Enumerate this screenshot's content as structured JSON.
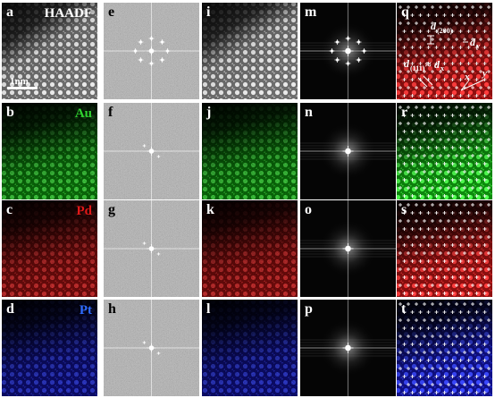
{
  "figure": {
    "panels": [
      {
        "id": "a",
        "kind": "stem",
        "tint": "gray",
        "label": "a",
        "tag": "HAADF",
        "tagColor": "#ffffff",
        "scalebar": "1nm"
      },
      {
        "id": "b",
        "kind": "map",
        "tint": "green",
        "label": "b",
        "tag": "Au",
        "tagColor": "#2fd12f"
      },
      {
        "id": "c",
        "kind": "map",
        "tint": "red",
        "label": "c",
        "tag": "Pd",
        "tagColor": "#e01818"
      },
      {
        "id": "d",
        "kind": "map",
        "tint": "blue",
        "label": "d",
        "tag": "Pt",
        "tagColor": "#2f6cff"
      },
      {
        "id": "e",
        "kind": "fft",
        "tint": "gray",
        "label": "e"
      },
      {
        "id": "f",
        "kind": "fft",
        "tint": "gray",
        "label": "f"
      },
      {
        "id": "g",
        "kind": "fft",
        "tint": "gray",
        "label": "g"
      },
      {
        "id": "h",
        "kind": "fft",
        "tint": "gray",
        "label": "h"
      },
      {
        "id": "i",
        "kind": "stem",
        "tint": "gray",
        "label": "i"
      },
      {
        "id": "j",
        "kind": "map",
        "tint": "green",
        "label": "j"
      },
      {
        "id": "k",
        "kind": "map",
        "tint": "red",
        "label": "k"
      },
      {
        "id": "l",
        "kind": "map",
        "tint": "blue",
        "label": "l"
      },
      {
        "id": "m",
        "kind": "fftdark",
        "tint": "gray",
        "label": "m"
      },
      {
        "id": "n",
        "kind": "fftdark",
        "tint": "gray",
        "label": "n"
      },
      {
        "id": "o",
        "kind": "fftdark",
        "tint": "gray",
        "label": "o"
      },
      {
        "id": "p",
        "kind": "fftdark",
        "tint": "gray",
        "label": "p"
      },
      {
        "id": "q",
        "kind": "overlay",
        "tint": "red",
        "label": "q",
        "annotations": {
          "d200": "d",
          "d200sub": "(200)",
          "d111": "d",
          "d111sub": "(111)",
          "approx": "≈",
          "dx": "d",
          "dxsub": "x",
          "dy": "d",
          "dysub": "y",
          "y": "y",
          "x": "x"
        }
      },
      {
        "id": "r",
        "kind": "overlay",
        "tint": "green",
        "label": "r"
      },
      {
        "id": "s",
        "kind": "overlay",
        "tint": "red",
        "label": "s"
      },
      {
        "id": "t",
        "kind": "overlay",
        "tint": "blue",
        "label": "t"
      }
    ]
  }
}
